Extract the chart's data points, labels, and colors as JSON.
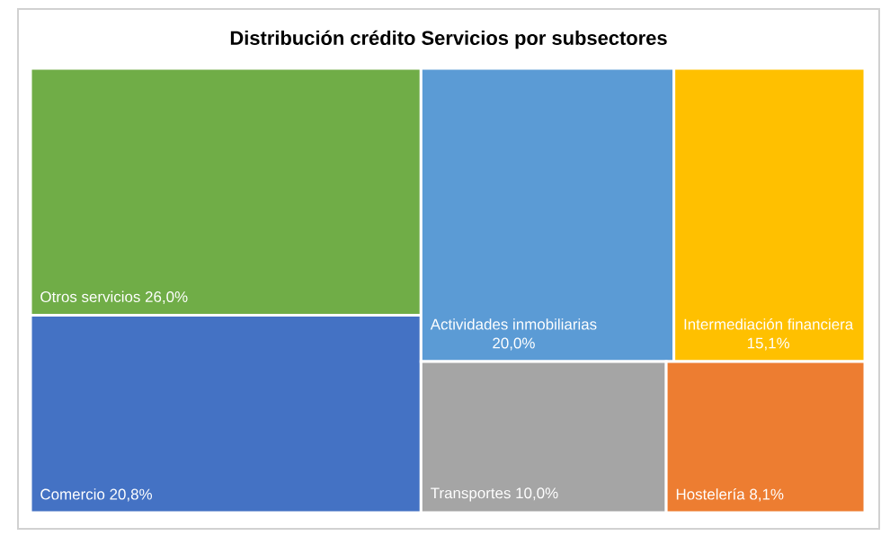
{
  "chart_data": {
    "type": "other",
    "title": "Distribución crédito Servicios por subsectores",
    "categories": [
      "Otros servicios",
      "Comercio",
      "Actividades inmobiliarias",
      "Intermediación financiera",
      "Transportes",
      "Hostelería"
    ],
    "values": [
      26.0,
      20.8,
      20.0,
      15.1,
      10.0,
      8.1
    ],
    "value_labels": [
      "26,0%",
      "20,8%",
      "20,0%",
      "15,1%",
      "10,0%",
      "8,1%"
    ],
    "colors": [
      "#70ad47",
      "#4472c4",
      "#5b9bd5",
      "#ffc000",
      "#a5a5a5",
      "#ed7d31"
    ]
  }
}
